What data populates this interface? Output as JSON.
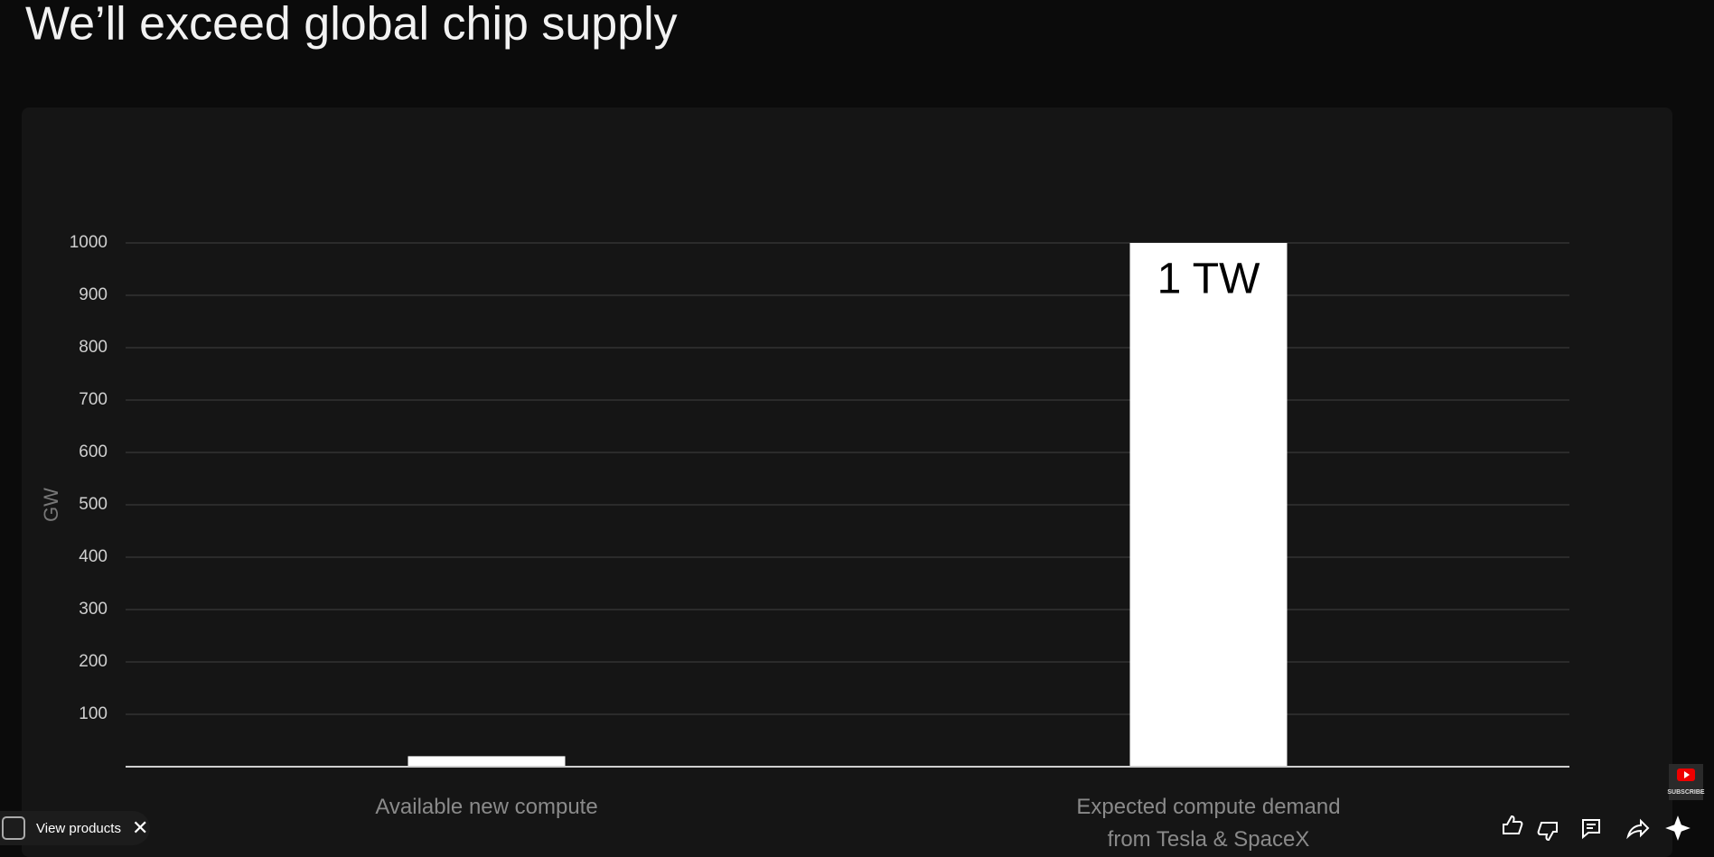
{
  "header": {
    "title": "We’ll exceed global chip supply"
  },
  "chart_data": {
    "type": "bar",
    "categories": [
      "Available new compute",
      "Expected compute demand from Tesla & SpaceX"
    ],
    "values": [
      20,
      1000
    ],
    "value_labels": [
      null,
      "1 TW"
    ],
    "color": "#ffffff",
    "y_label": "GW",
    "ylim": [
      0,
      1000
    ],
    "yticks": [
      100,
      200,
      300,
      400,
      500,
      600,
      700,
      800,
      900,
      1000
    ],
    "grid": true
  },
  "ui": {
    "product_chip": "View products",
    "subscribe": "SUBSCRIBE"
  }
}
